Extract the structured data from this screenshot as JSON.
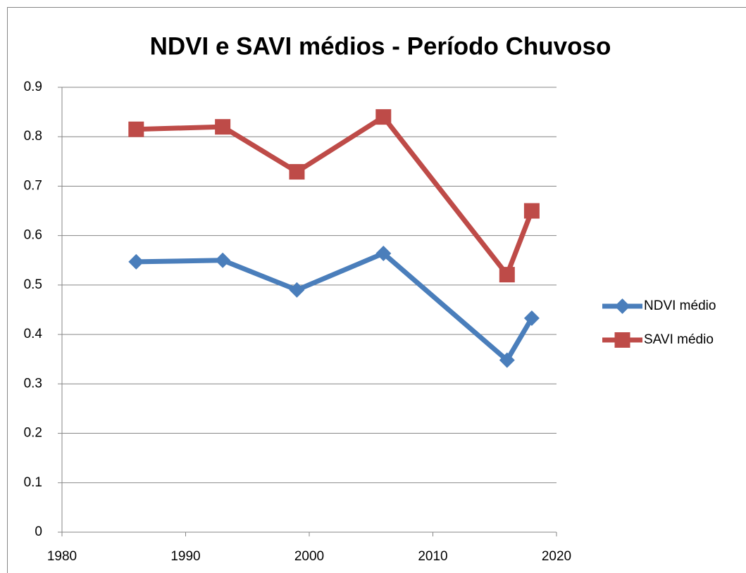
{
  "chart_data": {
    "type": "line",
    "title": "NDVI e SAVI médios - Período Chuvoso",
    "x": [
      1986,
      1993,
      1999,
      2006,
      2016,
      2018
    ],
    "series": [
      {
        "name": "NDVI médio",
        "color": "#4a7ebb",
        "marker": "diamond",
        "values": [
          0.547,
          0.55,
          0.49,
          0.564,
          0.348,
          0.433
        ]
      },
      {
        "name": "SAVI médio",
        "color": "#be4b48",
        "marker": "square",
        "values": [
          0.815,
          0.82,
          0.729,
          0.84,
          0.521,
          0.65
        ]
      }
    ],
    "xlim": [
      1980,
      2020
    ],
    "xticks": [
      1980,
      1990,
      2000,
      2010,
      2020
    ],
    "ylim": [
      0,
      0.9
    ],
    "yticks": [
      0,
      0.1,
      0.2,
      0.3,
      0.4,
      0.5,
      0.6,
      0.7,
      0.8,
      0.9
    ],
    "grid": true,
    "legend": "right"
  }
}
